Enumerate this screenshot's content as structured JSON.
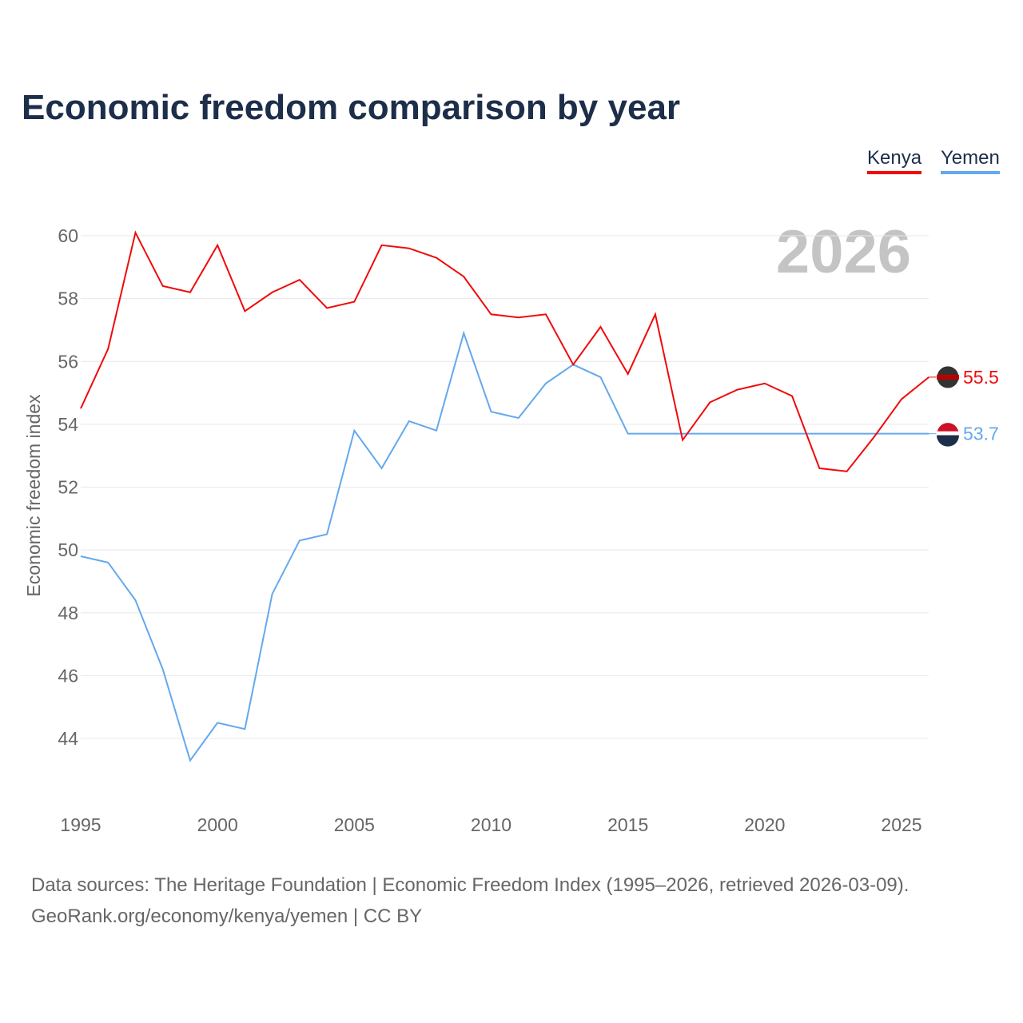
{
  "chart_data": {
    "type": "line",
    "title": "Economic freedom comparison by year",
    "xlabel": "",
    "ylabel": "Economic freedom index",
    "ylim": [
      42,
      61
    ],
    "xlim": [
      1995,
      2026
    ],
    "yticks": [
      44,
      46,
      48,
      50,
      52,
      54,
      56,
      58,
      60
    ],
    "xticks": [
      1995,
      2000,
      2005,
      2010,
      2015,
      2020,
      2025
    ],
    "grid": true,
    "legend_position": "top-right",
    "current_year_label": "2026",
    "x": [
      1995,
      1996,
      1997,
      1998,
      1999,
      2000,
      2001,
      2002,
      2003,
      2004,
      2005,
      2006,
      2007,
      2008,
      2009,
      2010,
      2011,
      2012,
      2013,
      2014,
      2015,
      2016,
      2017,
      2018,
      2019,
      2020,
      2021,
      2022,
      2023,
      2024,
      2025,
      2026
    ],
    "series": [
      {
        "name": "Kenya",
        "color": "#f00a0a",
        "end_label": "55.5",
        "values": [
          54.5,
          56.4,
          60.1,
          58.4,
          58.2,
          59.7,
          57.6,
          58.2,
          58.6,
          57.7,
          57.9,
          59.7,
          59.6,
          59.3,
          58.7,
          57.5,
          57.4,
          57.5,
          55.9,
          57.1,
          55.6,
          57.5,
          53.5,
          54.7,
          55.1,
          55.3,
          54.9,
          52.6,
          52.5,
          53.6,
          54.8,
          55.5
        ]
      },
      {
        "name": "Yemen",
        "color": "#64a8ee",
        "end_label": "53.7",
        "values": [
          49.8,
          49.6,
          48.4,
          46.2,
          43.3,
          44.5,
          44.3,
          48.6,
          50.3,
          50.5,
          53.8,
          52.6,
          54.1,
          53.8,
          56.9,
          54.4,
          54.2,
          55.3,
          55.9,
          55.5,
          53.7,
          53.7,
          53.7,
          53.7,
          53.7,
          53.7,
          53.7,
          53.7,
          53.7,
          53.7,
          53.7,
          53.7
        ]
      }
    ]
  },
  "source": {
    "line1": "Data sources: The Heritage Foundation | Economic Freedom Index (1995–2026, retrieved 2026-03-09).",
    "line2": "GeoRank.org/economy/kenya/yemen | CC BY"
  }
}
